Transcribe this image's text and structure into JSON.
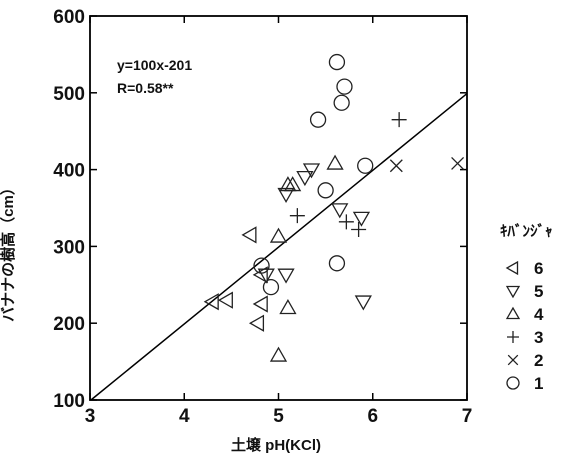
{
  "chart_data": {
    "type": "scatter",
    "title": "",
    "xlabel": "土壌 pH(KCl)",
    "ylabel": "バナナの樹高（cm）",
    "xlim": [
      3,
      7
    ],
    "ylim": [
      100,
      600
    ],
    "xticks": [
      3,
      4,
      5,
      6,
      7
    ],
    "yticks": [
      100,
      200,
      300,
      400,
      500,
      600
    ],
    "grid": false,
    "legend": {
      "title": "ｷﾊﾞﾝｼﾞｬ",
      "placement": "right"
    },
    "annotations": [
      "y=100x-201",
      "R=0.58**"
    ],
    "fit_line": {
      "slope": 100,
      "intercept": -201
    },
    "series": [
      {
        "name": "6",
        "marker": "triangle-left",
        "points": [
          [
            4.3,
            228
          ],
          [
            4.45,
            230
          ],
          [
            4.7,
            315
          ],
          [
            4.78,
            200
          ],
          [
            4.82,
            225
          ],
          [
            4.82,
            263
          ]
        ]
      },
      {
        "name": "5",
        "marker": "triangle-down",
        "points": [
          [
            5.08,
            263
          ],
          [
            5.08,
            368
          ],
          [
            5.28,
            390
          ],
          [
            5.35,
            400
          ],
          [
            5.65,
            348
          ],
          [
            5.88,
            337
          ],
          [
            5.9,
            228
          ],
          [
            4.87,
            263
          ]
        ]
      },
      {
        "name": "4",
        "marker": "triangle-up",
        "points": [
          [
            5.0,
            158
          ],
          [
            5.0,
            313
          ],
          [
            5.1,
            220
          ],
          [
            5.1,
            380
          ],
          [
            5.15,
            380
          ],
          [
            5.6,
            408
          ]
        ]
      },
      {
        "name": "3",
        "marker": "plus",
        "points": [
          [
            5.2,
            340
          ],
          [
            5.72,
            332
          ],
          [
            5.85,
            322
          ],
          [
            6.28,
            465
          ]
        ]
      },
      {
        "name": "2",
        "marker": "x",
        "points": [
          [
            6.25,
            405
          ],
          [
            6.9,
            408
          ]
        ]
      },
      {
        "name": "1",
        "marker": "circle",
        "points": [
          [
            4.82,
            275
          ],
          [
            4.92,
            247
          ],
          [
            5.42,
            465
          ],
          [
            5.5,
            373
          ],
          [
            5.62,
            278
          ],
          [
            5.62,
            540
          ],
          [
            5.67,
            487
          ],
          [
            5.7,
            508
          ],
          [
            5.92,
            405
          ]
        ]
      }
    ]
  }
}
